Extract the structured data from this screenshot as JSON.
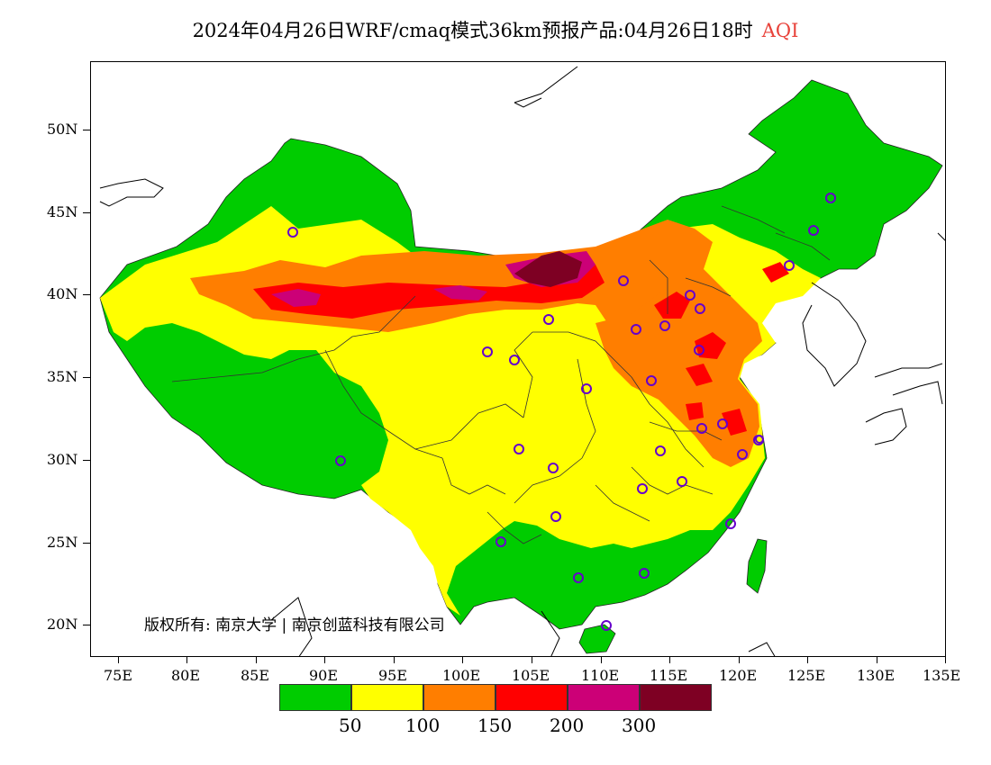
{
  "title": "2024年04月26日WRF/cmaq模式36km预报产品:04月26日18时",
  "title_aqi": "AQI",
  "y_axis_labels": [
    "50N",
    "45N",
    "40N",
    "35N",
    "30N",
    "25N",
    "20N"
  ],
  "x_axis_labels": [
    "75E",
    "80E",
    "85E",
    "90E",
    "95E",
    "100E",
    "105E",
    "110E",
    "115E",
    "120E",
    "125E",
    "130E",
    "135E"
  ],
  "copyright": "版权所有: 南京大学 | 南京创蓝科技有限公司",
  "legend": {
    "colors": [
      "#00cc00",
      "#ffff00",
      "#ff7e00",
      "#ff0000",
      "#cc0077",
      "#7e0023"
    ],
    "labels": [
      "50",
      "100",
      "150",
      "200",
      "300"
    ]
  },
  "map": {
    "extent_lon": [
      73,
      135
    ],
    "extent_lat": [
      18,
      54
    ],
    "color_scale": "AQI",
    "station_marker": "circle"
  }
}
